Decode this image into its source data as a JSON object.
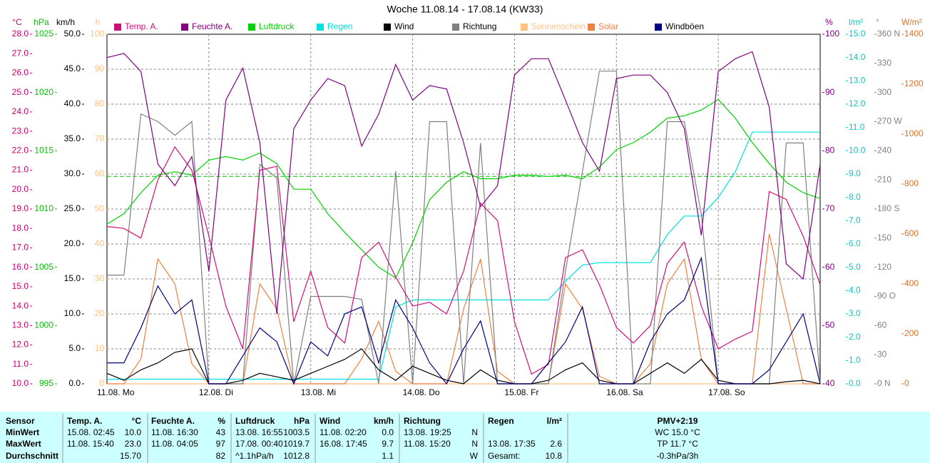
{
  "chart_data": {
    "type": "line",
    "title": "Woche 11.08.14 - 17.08.14 (KW33)",
    "x": [
      0,
      4,
      8,
      12,
      16,
      20,
      24,
      28,
      32,
      36,
      40,
      44,
      48,
      52,
      56,
      60,
      64,
      68,
      72,
      76,
      80,
      84,
      88,
      92,
      96,
      100,
      104,
      108,
      112,
      116,
      120,
      124,
      128,
      132,
      136,
      140,
      144,
      148,
      152,
      156,
      160,
      164,
      168
    ],
    "xlim": [
      0,
      168
    ],
    "xticks": [
      {
        "value": 0,
        "label": "11.08. Mo"
      },
      {
        "value": 24,
        "label": "12.08. Di"
      },
      {
        "value": 48,
        "label": "13.08. Mi"
      },
      {
        "value": 72,
        "label": "14.08. Do"
      },
      {
        "value": 96,
        "label": "15.08. Fr"
      },
      {
        "value": 120,
        "label": "16.08. Sa"
      },
      {
        "value": 144,
        "label": "17.08. So"
      }
    ],
    "grid": true,
    "axes": [
      {
        "unit": "°C",
        "color": "#c8006e",
        "lim": [
          10,
          28
        ],
        "ticks": [
          {
            "value": 10,
            "label": "10.0"
          },
          {
            "value": 11,
            "label": "11.0"
          },
          {
            "value": 12,
            "label": "12.0"
          },
          {
            "value": 13,
            "label": "13.0"
          },
          {
            "value": 14,
            "label": "14.0"
          },
          {
            "value": 15,
            "label": "15.0"
          },
          {
            "value": 16,
            "label": "16.0"
          },
          {
            "value": 17,
            "label": "17.0"
          },
          {
            "value": 18,
            "label": "18.0"
          },
          {
            "value": 19,
            "label": "19.0"
          },
          {
            "value": 20,
            "label": "20.0"
          },
          {
            "value": 21,
            "label": "21.0"
          },
          {
            "value": 22,
            "label": "22.0"
          },
          {
            "value": 23,
            "label": "23.0"
          },
          {
            "value": 24,
            "label": "24.0"
          },
          {
            "value": 25,
            "label": "25.0"
          },
          {
            "value": 26,
            "label": "26.0"
          },
          {
            "value": 27,
            "label": "27.0"
          },
          {
            "value": 28,
            "label": "28.0"
          }
        ]
      },
      {
        "unit": "hPa",
        "color": "#00c000",
        "lim": [
          995,
          1025
        ],
        "ticks": [
          995,
          1000,
          1005,
          1010,
          1015,
          1020,
          1025
        ]
      },
      {
        "unit": "km/h",
        "color": "#000000",
        "lim": [
          0,
          50
        ],
        "ticks": [
          {
            "value": 0,
            "label": "0.0"
          },
          {
            "value": 5,
            "label": "5.0"
          },
          {
            "value": 10,
            "label": "10.0"
          },
          {
            "value": 15,
            "label": "15.0"
          },
          {
            "value": 20,
            "label": "20.0"
          },
          {
            "value": 25,
            "label": "25.0"
          },
          {
            "value": 30,
            "label": "30.0"
          },
          {
            "value": 35,
            "label": "35.0"
          },
          {
            "value": 40,
            "label": "40.0"
          },
          {
            "value": 45,
            "label": "45.0"
          },
          {
            "value": 50,
            "label": "50.0"
          }
        ]
      },
      {
        "unit": "h",
        "color": "#ffc080",
        "lim": [
          0,
          100
        ],
        "ticks": [
          0,
          10,
          20,
          30,
          40,
          50,
          60,
          70,
          80,
          90,
          100
        ]
      },
      {
        "unit": "%",
        "color": "#800080",
        "lim": [
          40,
          100
        ],
        "ticks": [
          40,
          50,
          60,
          70,
          80,
          90,
          100
        ]
      },
      {
        "unit": "l/m²",
        "color": "#00c8c8",
        "lim": [
          0,
          15
        ],
        "ticks": [
          {
            "value": 0,
            "label": "0.0"
          },
          {
            "value": 1,
            "label": "1.0"
          },
          {
            "value": 2,
            "label": "2.0"
          },
          {
            "value": 3,
            "label": "3.0"
          },
          {
            "value": 4,
            "label": "4.0"
          },
          {
            "value": 5,
            "label": "5.0"
          },
          {
            "value": 6,
            "label": "6.0"
          },
          {
            "value": 7,
            "label": "7.0"
          },
          {
            "value": 8,
            "label": "8.0"
          },
          {
            "value": 9,
            "label": "9.0"
          },
          {
            "value": 10,
            "label": "10.0"
          },
          {
            "value": 11,
            "label": "11.0"
          },
          {
            "value": 12,
            "label": "12.0"
          },
          {
            "value": 13,
            "label": "13.0"
          },
          {
            "value": 14,
            "label": "14.0"
          },
          {
            "value": 15,
            "label": "15.0"
          }
        ]
      },
      {
        "unit": "°",
        "color": "#808080",
        "lim": [
          0,
          360
        ],
        "ticks": [
          {
            "value": 0,
            "label": "0 N"
          },
          30,
          60,
          {
            "value": 90,
            "label": "90 O"
          },
          120,
          150,
          {
            "value": 180,
            "label": "180 S"
          },
          210,
          240,
          {
            "value": 270,
            "label": "270 W"
          },
          300,
          330,
          {
            "value": 360,
            "label": "360 N"
          }
        ]
      },
      {
        "unit": "W/m²",
        "color": "#e07020",
        "lim": [
          0,
          1400
        ],
        "ticks": [
          0,
          200,
          400,
          600,
          800,
          1000,
          1200,
          1400
        ]
      }
    ],
    "series": [
      {
        "name": "Temp. A.",
        "color": "#d0107a",
        "axis": 0,
        "values": [
          18.1,
          18.0,
          17.5,
          20.5,
          22.2,
          21.0,
          17.6,
          14.0,
          11.8,
          21.0,
          21.2,
          13.2,
          15.8,
          12.9,
          12.1,
          16.5,
          17.3,
          15.5,
          14.0,
          14.2,
          13.6,
          15.8,
          19.3,
          18.4,
          13.2,
          10.5,
          11.0,
          16.5,
          16.9,
          15.1,
          12.9,
          12.1,
          13.0,
          16.2,
          17.3,
          14.0,
          11.8,
          12.3,
          12.7,
          19.9,
          19.5,
          17.6,
          15.1
        ]
      },
      {
        "name": "Feuchte A.",
        "color": "#800080",
        "axis": 4,
        "values": [
          96,
          96.7,
          93.6,
          77.7,
          74,
          79,
          59.3,
          88.7,
          94.2,
          81.4,
          52,
          83.8,
          88.7,
          92.4,
          91.2,
          80.8,
          86.3,
          94.8,
          88.7,
          91.2,
          90.6,
          81.4,
          70.4,
          74,
          93,
          95.8,
          95.8,
          88.7,
          81.4,
          76.5,
          92.4,
          93,
          93,
          90,
          83.8,
          65.5,
          93.6,
          95.8,
          97,
          87.5,
          60.6,
          58,
          77.7
        ]
      },
      {
        "name": "Luftdruck",
        "color": "#00d000",
        "axis": 1,
        "values": [
          1008.7,
          1009.6,
          1011.4,
          1012.9,
          1013.2,
          1012.9,
          1014.2,
          1014.5,
          1014.2,
          1014.8,
          1013.9,
          1011.7,
          1011.7,
          1009.6,
          1008.0,
          1006.5,
          1005.0,
          1004.1,
          1007.1,
          1010.8,
          1012.3,
          1013.2,
          1012.6,
          1012.6,
          1012.9,
          1012.9,
          1012.8,
          1012.9,
          1012.6,
          1013.6,
          1015.1,
          1015.7,
          1016.6,
          1017.8,
          1018.0,
          1018.5,
          1019.4,
          1017.8,
          1015.7,
          1013.9,
          1012.3,
          1011.4,
          1010.9
        ]
      },
      {
        "name": "Regen",
        "color": "#00e0e0",
        "axis": 5,
        "values": [
          0.2,
          0.2,
          0.2,
          0.2,
          0.2,
          0.2,
          0.2,
          0.2,
          0.2,
          0.2,
          0.2,
          0.2,
          0.2,
          0.2,
          0.2,
          0.2,
          0.2,
          3.3,
          3.6,
          3.6,
          3.6,
          3.6,
          3.6,
          3.6,
          3.6,
          3.6,
          3.6,
          4.4,
          5.1,
          5.2,
          5.2,
          5.2,
          5.2,
          6.4,
          7.2,
          7.2,
          8.0,
          9.1,
          10.8,
          10.8,
          10.8,
          10.8,
          10.8
        ]
      },
      {
        "name": "Wind",
        "color": "#000000",
        "axis": 2,
        "values": [
          1.5,
          0.5,
          2,
          3,
          4.5,
          5,
          0,
          0,
          0.5,
          1.5,
          1,
          0.5,
          1.5,
          2.5,
          3.5,
          5,
          2,
          0.5,
          2.5,
          1.5,
          0.5,
          0,
          2,
          0.5,
          0,
          0,
          0.5,
          2,
          3,
          0.5,
          0,
          0,
          1.5,
          3,
          1.5,
          3.5,
          0.5,
          0,
          0,
          0,
          0.3,
          0.5,
          0
        ]
      },
      {
        "name": "Richtung",
        "color": "#808080",
        "axis": 6,
        "values": [
          112,
          112,
          278,
          270,
          256,
          270,
          0,
          0,
          0,
          226,
          212,
          0,
          90,
          90,
          90,
          87,
          0,
          219,
          0,
          270,
          270,
          0,
          248,
          0,
          0,
          0,
          0,
          116,
          219,
          322,
          322,
          0,
          0,
          270,
          270,
          175,
          0,
          0,
          0,
          0,
          248,
          248,
          0
        ]
      },
      {
        "name": "Sonnenschein",
        "color": "#ffc080",
        "axis": 3,
        "values": [
          0,
          0,
          0,
          0,
          0,
          0,
          0,
          0,
          0,
          0,
          0,
          0,
          0,
          0,
          0,
          0,
          0,
          0,
          0,
          0,
          0,
          0,
          0,
          0,
          0,
          0,
          0,
          0,
          0,
          0,
          0,
          0,
          0,
          0,
          0,
          0,
          0,
          0,
          0,
          0,
          0,
          0,
          0
        ]
      },
      {
        "name": "Solar",
        "color": "#f08040",
        "axis": 7,
        "values": [
          0,
          0,
          100,
          500,
          400,
          80,
          0,
          0,
          0,
          400,
          300,
          0,
          0,
          0,
          0,
          100,
          250,
          50,
          0,
          0,
          0,
          300,
          500,
          50,
          0,
          0,
          0,
          400,
          300,
          30,
          0,
          0,
          80,
          400,
          500,
          100,
          0,
          0,
          0,
          600,
          300,
          0,
          0
        ]
      },
      {
        "name": "Windböen",
        "color": "#000080",
        "axis": 2,
        "values": [
          3,
          3,
          8,
          14,
          10,
          12,
          0,
          0,
          4,
          8,
          6,
          0,
          6,
          4,
          10,
          11,
          3,
          12,
          8,
          3,
          0,
          5,
          9,
          0,
          0,
          0,
          3,
          6,
          11,
          0,
          0,
          0,
          6,
          10,
          12,
          18,
          0,
          0,
          0,
          2,
          6,
          10,
          0
        ]
      }
    ],
    "mean_line": {
      "axis": 1,
      "value": 1012.8,
      "color": "#00c000"
    }
  },
  "table": {
    "columns": [
      {
        "title": "Sensor"
      },
      {
        "title": "Temp. A.",
        "unit": "°C"
      },
      {
        "title": "Feuchte A.",
        "unit": "%"
      },
      {
        "title": "Luftdruck",
        "unit": "hPa"
      },
      {
        "title": "Wind",
        "unit": "km/h"
      },
      {
        "title": "Richtung"
      },
      {
        "title": "Regen",
        "unit": "l/m²"
      },
      {
        "title": "PMV+2:19"
      }
    ],
    "rows": [
      {
        "label": "MinWert",
        "cells": [
          [
            "15.08. 02:45",
            "10.0"
          ],
          [
            "11.08. 16:30",
            "43"
          ],
          [
            "13.08. 16:55",
            "1003.5"
          ],
          [
            "11.08. 02:20",
            "0.0"
          ],
          [
            "13.08. 19:25",
            "N"
          ],
          [],
          [
            "WC 15.0 °C"
          ]
        ]
      },
      {
        "label": "MaxWert",
        "cells": [
          [
            "11.08. 15:40",
            "23.0"
          ],
          [
            "11.08. 04:05",
            "97"
          ],
          [
            "17.08. 00:40",
            "1019.7"
          ],
          [
            "16.08. 17:45",
            "9.7"
          ],
          [
            "11.08. 15:20",
            "N"
          ],
          [
            "13.08. 17:35",
            "2.6"
          ],
          [
            "TP 11.7 °C"
          ]
        ]
      },
      {
        "label": "Durchschnitt",
        "cells": [
          [
            "15.70"
          ],
          [
            "82"
          ],
          [
            "^1.1hPa/h",
            "1012.8"
          ],
          [
            "1.1"
          ],
          [
            "W"
          ],
          [
            "Gesamt:",
            "10.8"
          ],
          [
            "-0.3hPa/3h"
          ]
        ]
      }
    ]
  }
}
